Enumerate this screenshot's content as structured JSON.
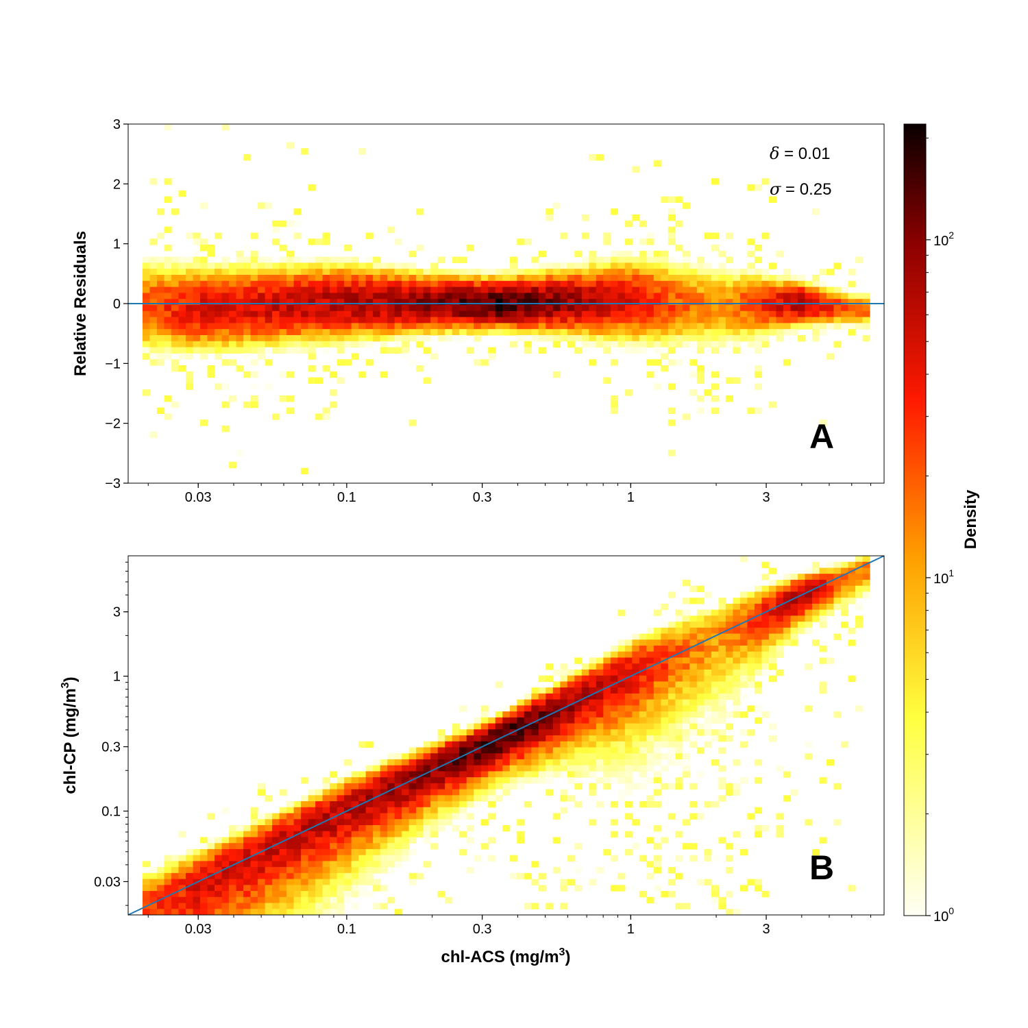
{
  "chart_data": [
    {
      "type": "heatmap",
      "panel_label": "A",
      "xlabel": "",
      "ylabel": "Relative Residuals",
      "x_scale": "log",
      "xlim": [
        0.017,
        7.8
      ],
      "ylim": [
        -3,
        3
      ],
      "x_ticks": [
        {
          "value": 0.03,
          "label": "0.03"
        },
        {
          "value": 0.1,
          "label": "0.1"
        },
        {
          "value": 0.3,
          "label": "0.3"
        },
        {
          "value": 1,
          "label": "1"
        },
        {
          "value": 3,
          "label": "3"
        }
      ],
      "y_ticks": [
        {
          "value": 3,
          "label": "3"
        },
        {
          "value": 2,
          "label": "2"
        },
        {
          "value": 1,
          "label": "1"
        },
        {
          "value": 0,
          "label": "0"
        },
        {
          "value": -1,
          "label": "−1"
        },
        {
          "value": -2,
          "label": "−2"
        },
        {
          "value": -3,
          "label": "−3"
        }
      ],
      "reference_line": {
        "type": "horizontal",
        "y": 0,
        "color": "#1f77b4"
      },
      "annotations": [
        {
          "symbol": "δ",
          "text": " = 0.01"
        },
        {
          "symbol": "σ",
          "text": " = 0.25"
        }
      ],
      "density_ridge": [
        {
          "x": 0.02,
          "center": -0.05,
          "spread": 0.32,
          "peak": 25
        },
        {
          "x": 0.03,
          "center": -0.1,
          "spread": 0.3,
          "peak": 45
        },
        {
          "x": 0.05,
          "center": -0.05,
          "spread": 0.28,
          "peak": 55
        },
        {
          "x": 0.1,
          "center": 0.02,
          "spread": 0.26,
          "peak": 70
        },
        {
          "x": 0.2,
          "center": 0.0,
          "spread": 0.2,
          "peak": 100
        },
        {
          "x": 0.35,
          "center": 0.0,
          "spread": 0.17,
          "peak": 180
        },
        {
          "x": 0.6,
          "center": 0.02,
          "spread": 0.22,
          "peak": 90
        },
        {
          "x": 1.0,
          "center": 0.05,
          "spread": 0.3,
          "peak": 45
        },
        {
          "x": 2.0,
          "center": -0.05,
          "spread": 0.3,
          "peak": 12
        },
        {
          "x": 4.0,
          "center": 0.0,
          "spread": 0.15,
          "peak": 80
        },
        {
          "x": 6.0,
          "center": -0.1,
          "spread": 0.12,
          "peak": 18
        }
      ]
    },
    {
      "type": "heatmap",
      "panel_label": "B",
      "xlabel": "chl-ACS (mg/m",
      "xlabel_sup": "3",
      "xlabel_end": ")",
      "ylabel": "chl-CP (mg/m",
      "ylabel_sup": "3",
      "ylabel_end": ")",
      "x_scale": "log",
      "y_scale": "log",
      "xlim": [
        0.017,
        7.8
      ],
      "ylim": [
        0.017,
        7.8
      ],
      "x_ticks": [
        {
          "value": 0.03,
          "label": "0.03"
        },
        {
          "value": 0.1,
          "label": "0.1"
        },
        {
          "value": 0.3,
          "label": "0.3"
        },
        {
          "value": 1,
          "label": "1"
        },
        {
          "value": 3,
          "label": "3"
        }
      ],
      "y_ticks": [
        {
          "value": 0.03,
          "label": "0.03"
        },
        {
          "value": 0.1,
          "label": "0.1"
        },
        {
          "value": 0.3,
          "label": "0.3"
        },
        {
          "value": 1,
          "label": "1"
        },
        {
          "value": 3,
          "label": "3"
        }
      ],
      "reference_line": {
        "type": "one-to-one",
        "color": "#1f77b4"
      }
    }
  ],
  "colorbar": {
    "label": "Density",
    "scale": "log",
    "range": [
      1,
      220
    ],
    "colormap": "hot_r",
    "ticks": [
      {
        "value": 1,
        "base": "10",
        "exp": "0"
      },
      {
        "value": 10,
        "base": "10",
        "exp": "1"
      },
      {
        "value": 100,
        "base": "10",
        "exp": "2"
      }
    ]
  }
}
